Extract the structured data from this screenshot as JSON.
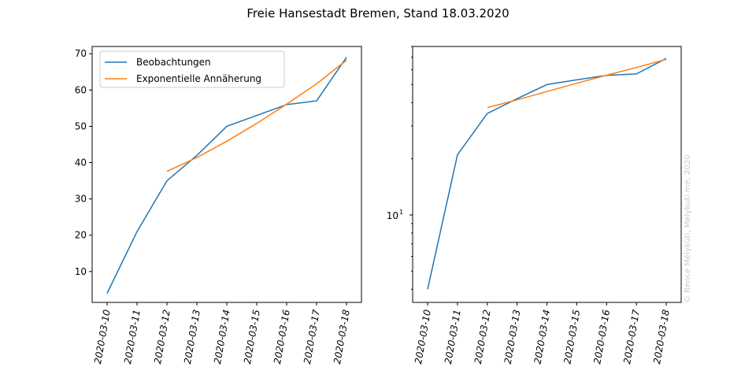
{
  "title": "Freie Hansestadt Bremen, Stand 18.03.2020",
  "watermark": "© Bence Mélykúti, Melykuti.me, 2020",
  "colors": {
    "observations": "#1f77b4",
    "fit": "#ff7f0e"
  },
  "chart_data": [
    {
      "type": "line",
      "scale": "linear",
      "x": [
        "2020-03-10",
        "2020-03-11",
        "2020-03-12",
        "2020-03-13",
        "2020-03-14",
        "2020-03-15",
        "2020-03-16",
        "2020-03-17",
        "2020-03-18"
      ],
      "series": [
        {
          "name": "Beobachtungen",
          "color": "#1f77b4",
          "values": [
            4,
            21,
            35,
            42,
            50,
            53,
            56,
            57,
            69
          ]
        },
        {
          "name": "Exponentielle Annäherung",
          "color": "#ff7f0e",
          "values": [
            null,
            null,
            37.6,
            41.4,
            45.9,
            50.8,
            56.1,
            61.7,
            68.2
          ]
        }
      ],
      "ylim": [
        1.5,
        72
      ],
      "yticks": [
        10,
        20,
        30,
        40,
        50,
        60,
        70
      ],
      "legend": "top-left"
    },
    {
      "type": "line",
      "scale": "log",
      "x": [
        "2020-03-10",
        "2020-03-11",
        "2020-03-12",
        "2020-03-13",
        "2020-03-14",
        "2020-03-15",
        "2020-03-16",
        "2020-03-17",
        "2020-03-18"
      ],
      "series": [
        {
          "color": "#1f77b4",
          "values": [
            4,
            21,
            35,
            42,
            50,
            53,
            56,
            57,
            69
          ]
        },
        {
          "color": "#ff7f0e",
          "values": [
            null,
            null,
            37.6,
            41.4,
            45.9,
            50.8,
            56.1,
            61.7,
            68.2
          ]
        }
      ],
      "ylim": [
        3.4,
        80
      ],
      "yticks": [
        10
      ],
      "ytick_labels": [
        "10^1"
      ]
    }
  ]
}
